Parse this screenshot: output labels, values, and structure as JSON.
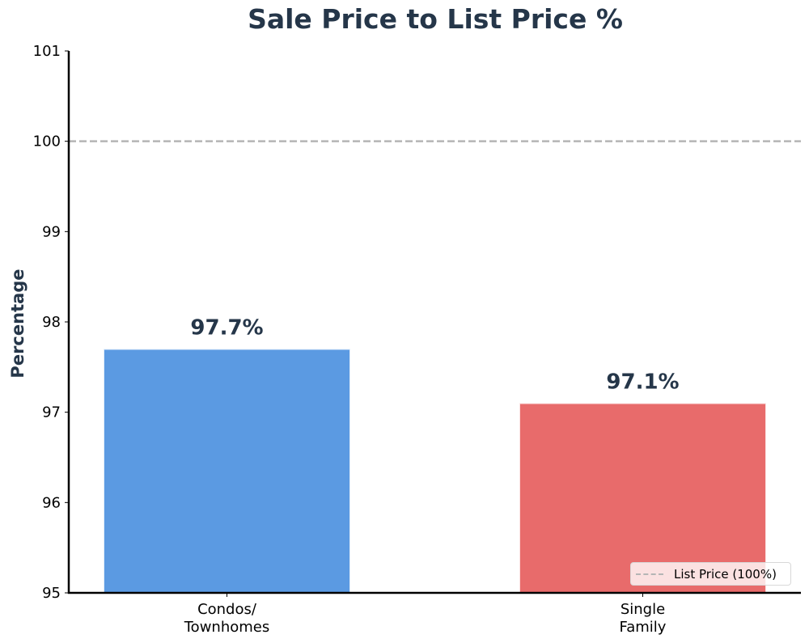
{
  "chart_data": {
    "type": "bar",
    "title": "Sale Price to List Price %",
    "xlabel": "",
    "ylabel": "Percentage",
    "ylim": [
      95,
      101
    ],
    "yticks": [
      "95",
      "96",
      "97",
      "98",
      "99",
      "100",
      "101"
    ],
    "categories": [
      "Condos/\nTownhomes",
      "Single\nFamily"
    ],
    "category_lines": [
      [
        "Condos/",
        "Townhomes"
      ],
      [
        "Single",
        "Family"
      ]
    ],
    "values": [
      97.7,
      97.1
    ],
    "value_labels": [
      "97.7%",
      "97.1%"
    ],
    "colors": [
      "#5b9ae2",
      "#e86b6b"
    ],
    "reference_line": {
      "y": 100,
      "style": "dashed",
      "color": "#b5b5b5",
      "label": "List Price (100%)"
    },
    "legend": {
      "position": "lower right",
      "entries": [
        "List Price (100%)"
      ]
    },
    "grid": false
  },
  "title": "Sale Price to List Price %",
  "ylabel": "Percentage",
  "legend": {
    "label": "List Price (100%)"
  }
}
